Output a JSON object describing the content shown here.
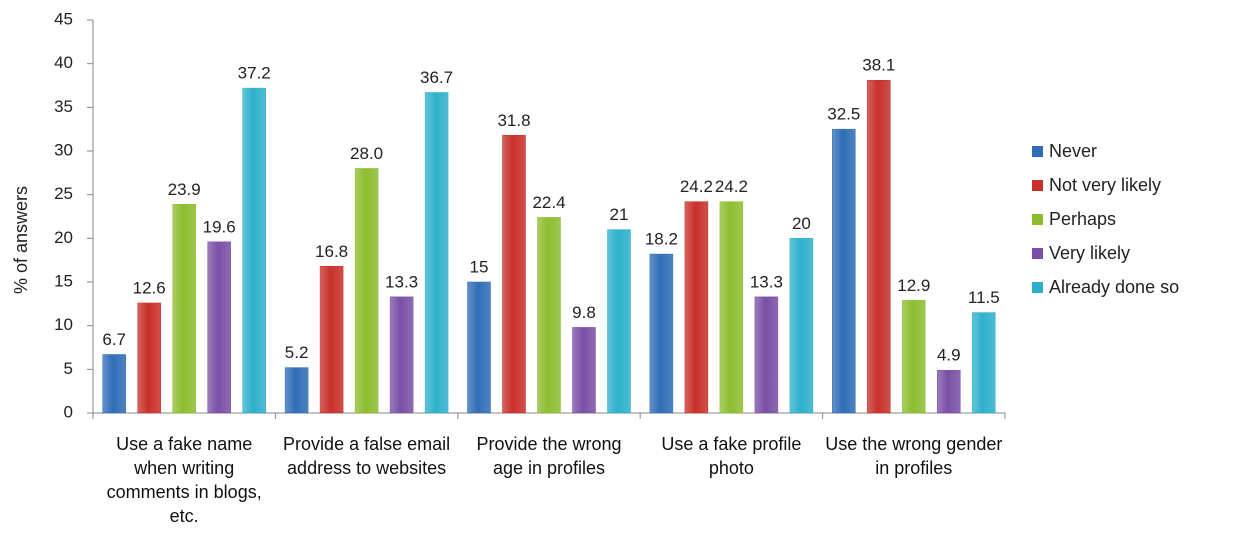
{
  "chart_data": {
    "type": "bar",
    "ylabel": "% of answers",
    "categories": [
      "Use a fake name when writing comments in blogs, etc.",
      "Provide a false email address to websites",
      "Provide the wrong age in profiles",
      "Use a fake profile photo",
      "Use the wrong gender in profiles"
    ],
    "series": [
      {
        "name": "Never",
        "color": "#2f6db6",
        "values": [
          6.7,
          5.2,
          15,
          18.2,
          32.5
        ]
      },
      {
        "name": "Not very likely",
        "color": "#c8302b",
        "values": [
          12.6,
          16.8,
          31.8,
          24.2,
          38.1
        ]
      },
      {
        "name": "Perhaps",
        "color": "#8dbd2f",
        "values": [
          23.9,
          28.0,
          22.4,
          24.2,
          12.9
        ],
        "value_labels": [
          "23.9",
          "28.0",
          "22.4",
          "24.2",
          "12.9"
        ]
      },
      {
        "name": "Very likely",
        "color": "#7a4fa6",
        "values": [
          19.6,
          13.3,
          9.8,
          13.3,
          4.9
        ]
      },
      {
        "name": "Already done so",
        "color": "#2eb0cc",
        "values": [
          37.2,
          36.7,
          21,
          20,
          11.5
        ]
      }
    ],
    "ylim": [
      0,
      45
    ],
    "yticks": [
      0,
      5,
      10,
      15,
      20,
      25,
      30,
      35,
      40,
      45
    ],
    "legend": "right"
  }
}
